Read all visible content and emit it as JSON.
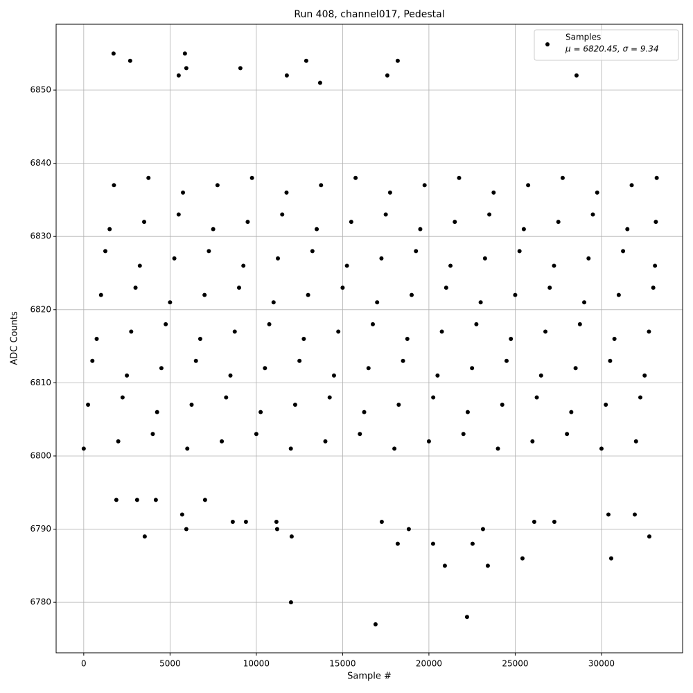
{
  "chart_data": {
    "type": "scatter",
    "title": "Run 408, channel017, Pedestal",
    "x_label": "Sample #",
    "y_label": "ADC Counts",
    "xlim": [
      -1600,
      34700
    ],
    "ylim": [
      6773.1,
      6859
    ],
    "xticks": [
      0,
      5000,
      10000,
      15000,
      20000,
      25000,
      30000
    ],
    "yticks": [
      6780,
      6790,
      6800,
      6810,
      6820,
      6830,
      6840,
      6850
    ],
    "grid": true,
    "legend": "upper right",
    "legend_note": "μ = 6820.45, σ = 9.34",
    "series": [
      {
        "name": "Samples",
        "color": "#000000",
        "x": [
          0,
          250,
          500,
          750,
          1000,
          1250,
          1500,
          1750,
          2000,
          2250,
          2500,
          2750,
          3000,
          3250,
          3500,
          3750,
          4000,
          4250,
          4500,
          4750,
          5000,
          5250,
          5500,
          5750,
          6000,
          6250,
          6500,
          6750,
          7000,
          7250,
          7500,
          7750,
          8000,
          8250,
          8500,
          8750,
          9000,
          9250,
          9500,
          9750,
          10000,
          10250,
          10500,
          10750,
          11000,
          11250,
          11500,
          11750,
          12000,
          12250,
          12500,
          12750,
          13000,
          13250,
          13500,
          13750,
          14000,
          14250,
          14500,
          14750,
          15000,
          15250,
          15500,
          15750,
          16000,
          16250,
          16500,
          16750,
          17000,
          17250,
          17500,
          17750,
          18000,
          18250,
          18500,
          18750,
          19000,
          19250,
          19500,
          19750,
          20000,
          20250,
          20500,
          20750,
          21000,
          21250,
          21500,
          21750,
          22000,
          22250,
          22500,
          22750,
          23000,
          23250,
          23500,
          23750,
          24000,
          24250,
          24500,
          24750,
          25000,
          25250,
          25500,
          25750,
          26000,
          26250,
          26500,
          26750,
          27000,
          27250,
          27500,
          27750,
          28000,
          28250,
          28500,
          28750,
          29000,
          29250,
          29500,
          29750,
          30000,
          30250,
          30500,
          30750,
          31000,
          31250,
          31500,
          31750,
          32000,
          32250,
          32500,
          32750,
          33000,
          33100,
          33150,
          33200,
          1727,
          2690,
          5863,
          5944,
          5502,
          9076,
          11767,
          12892,
          18193,
          17590,
          28554,
          13695,
          12048,
          12008,
          16908,
          22209,
          3534,
          5944,
          5703,
          20924,
          23414,
          25422,
          30562,
          32771,
          20241,
          18193,
          22530,
          18835,
          23133,
          8635,
          11165,
          11205,
          17269,
          27269,
          26104,
          1888,
          3092,
          4177,
          7028,
          9398,
          30402,
          31928
        ],
        "values": [
          6801,
          6807,
          6813,
          6816,
          6822,
          6828,
          6831,
          6837,
          6802,
          6808,
          6811,
          6817,
          6823,
          6826,
          6832,
          6838,
          6803,
          6806,
          6812,
          6818,
          6821,
          6827,
          6833,
          6836,
          6801,
          6807,
          6813,
          6816,
          6822,
          6828,
          6831,
          6837,
          6802,
          6808,
          6811,
          6817,
          6823,
          6826,
          6832,
          6838,
          6803,
          6806,
          6812,
          6818,
          6821,
          6827,
          6833,
          6836,
          6801,
          6807,
          6813,
          6816,
          6822,
          6828,
          6831,
          6837,
          6802,
          6808,
          6811,
          6817,
          6823,
          6826,
          6832,
          6838,
          6803,
          6806,
          6812,
          6818,
          6821,
          6827,
          6833,
          6836,
          6801,
          6807,
          6813,
          6816,
          6822,
          6828,
          6831,
          6837,
          6802,
          6808,
          6811,
          6817,
          6823,
          6826,
          6832,
          6838,
          6803,
          6806,
          6812,
          6818,
          6821,
          6827,
          6833,
          6836,
          6801,
          6807,
          6813,
          6816,
          6822,
          6828,
          6831,
          6837,
          6802,
          6808,
          6811,
          6817,
          6823,
          6826,
          6832,
          6838,
          6803,
          6806,
          6812,
          6818,
          6821,
          6827,
          6833,
          6836,
          6801,
          6807,
          6813,
          6816,
          6822,
          6828,
          6831,
          6837,
          6802,
          6808,
          6811,
          6817,
          6823,
          6826,
          6832,
          6838,
          6855,
          6854,
          6855,
          6853,
          6852,
          6853,
          6852,
          6854,
          6854,
          6852,
          6852,
          6851,
          6789,
          6780,
          6777,
          6778,
          6789,
          6790,
          6792,
          6785,
          6785,
          6786,
          6786,
          6789,
          6788,
          6788,
          6788,
          6790,
          6790,
          6791,
          6791,
          6790,
          6791,
          6791,
          6791,
          6794,
          6794,
          6794,
          6794,
          6791,
          6792,
          6792
        ]
      }
    ]
  }
}
